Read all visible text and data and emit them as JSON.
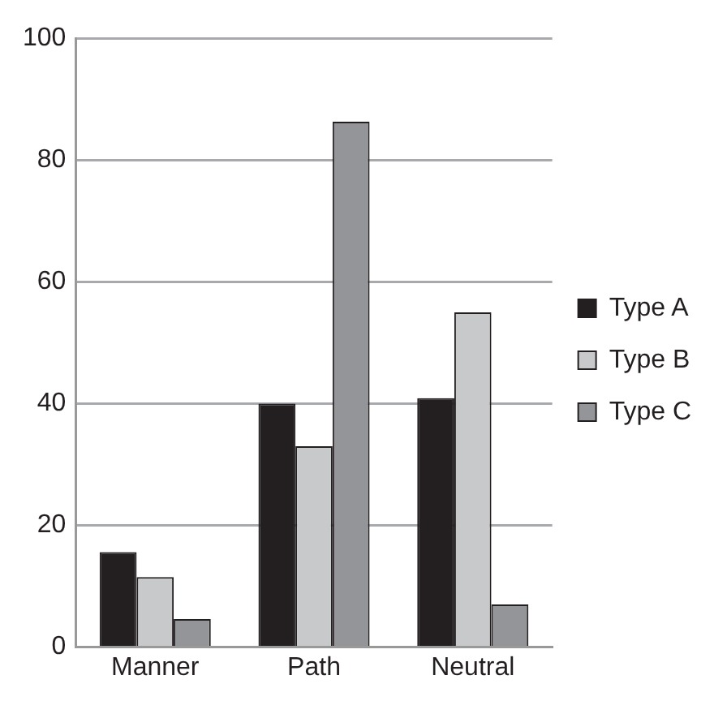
{
  "chart_data": {
    "type": "bar",
    "categories": [
      "Manner",
      "Path",
      "Neutral"
    ],
    "series": [
      {
        "name": "Type A",
        "color": "#231f20",
        "values": [
          15.6,
          40,
          40.9
        ]
      },
      {
        "name": "Type B",
        "color": "#c8c9cb",
        "values": [
          11.5,
          33,
          55
        ]
      },
      {
        "name": "Type C",
        "color": "#939598",
        "values": [
          4.6,
          86.3,
          7
        ]
      }
    ],
    "ylim": [
      0,
      100
    ],
    "yticks": [
      0,
      20,
      40,
      60,
      80,
      100
    ],
    "grid": "y",
    "legend": "right"
  }
}
